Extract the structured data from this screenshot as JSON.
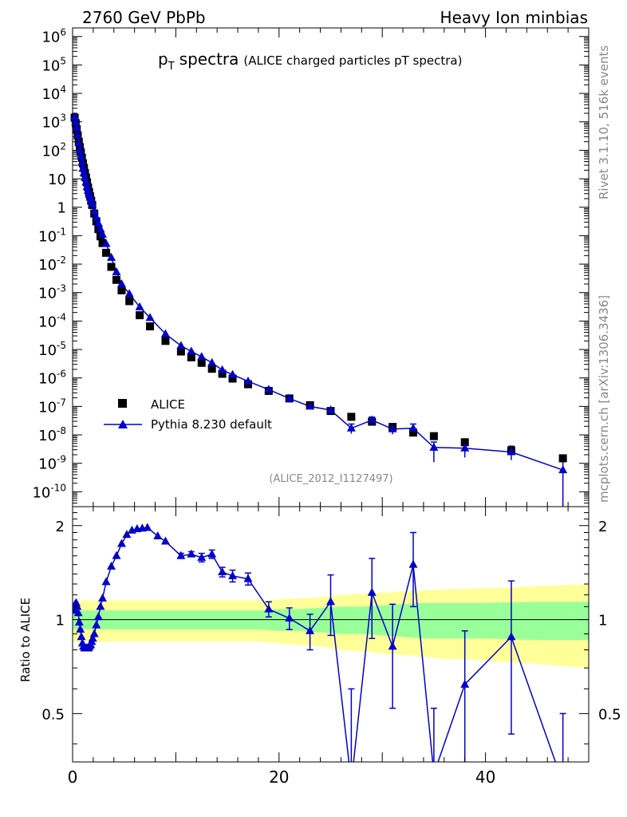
{
  "header": {
    "left": "2760 GeV PbPb",
    "right": "Heavy Ion minbias",
    "side_top": "Rivet 3.1.10,  516k events",
    "side_bottom": "mcplots.cern.ch [arXiv:1306.3436]"
  },
  "chart_data": [
    {
      "type": "scatter",
      "title": "p_T spectra",
      "title_main": "p",
      "title_sub": "T",
      "title_word": "spectra",
      "subtitle": "(ALICE charged particles pT spectra)",
      "analysis_tag": "(ALICE_2012_I1127497)",
      "y_scale": "log",
      "xlim": [
        0,
        50
      ],
      "ylim": [
        3e-11,
        2000000.0
      ],
      "y_tick_labels": [
        "10^-10",
        "10^-9",
        "10^-8",
        "10^-7",
        "10^-6",
        "10^-5",
        "10^-4",
        "10^-3",
        "10^-2",
        "10^-1",
        "1",
        "10",
        "10^2",
        "10^3",
        "10^4",
        "10^5",
        "10^6"
      ],
      "legend_position": "bottom-left",
      "legend": [
        "ALICE",
        "Pythia 8.230 default"
      ],
      "series": [
        {
          "name": "ALICE",
          "marker": "square",
          "color": "#000000",
          "x": [
            0.2,
            0.3,
            0.4,
            0.5,
            0.6,
            0.7,
            0.8,
            0.9,
            1.0,
            1.1,
            1.2,
            1.3,
            1.4,
            1.5,
            1.6,
            1.7,
            1.8,
            1.9,
            2.1,
            2.3,
            2.5,
            2.7,
            2.9,
            3.25,
            3.75,
            4.25,
            4.75,
            5.5,
            6.5,
            7.5,
            9.0,
            10.5,
            11.5,
            12.5,
            13.5,
            14.5,
            15.5,
            17.0,
            19.0,
            21.0,
            23.0,
            25.0,
            27.0,
            29.0,
            31.0,
            33.0,
            35.0,
            38.0,
            42.5,
            47.5
          ],
          "y": [
            1400.0,
            900.0,
            550.0,
            330.0,
            200.0,
            130.0,
            85,
            55,
            35,
            24,
            16,
            11,
            7.5,
            5.0,
            3.4,
            2.4,
            1.7,
            1.2,
            0.6,
            0.32,
            0.17,
            0.095,
            0.055,
            0.025,
            0.008,
            0.0028,
            0.0012,
            0.0005,
            0.00016,
            6.5e-05,
            2e-05,
            8.5e-06,
            5.3e-06,
            3.4e-06,
            2.1e-06,
            1.4e-06,
            9.5e-07,
            6e-07,
            3.5e-07,
            1.9e-07,
            1.1e-07,
            6.9e-08,
            4.3e-08,
            2.9e-08,
            1.9e-08,
            1.2e-08,
            9e-09,
            5.5e-09,
            2.8e-09,
            1.5e-09
          ]
        },
        {
          "name": "Pythia 8.230 default",
          "marker": "triangle",
          "color": "#0000cc",
          "x": [
            0.2,
            0.3,
            0.4,
            0.5,
            0.6,
            0.7,
            0.8,
            0.9,
            1.0,
            1.1,
            1.2,
            1.3,
            1.4,
            1.5,
            1.6,
            1.7,
            1.8,
            1.9,
            2.1,
            2.3,
            2.5,
            2.7,
            2.9,
            3.25,
            3.75,
            4.25,
            4.75,
            5.5,
            6.5,
            7.5,
            9.0,
            10.5,
            11.5,
            12.5,
            13.5,
            14.5,
            15.5,
            17.0,
            19.0,
            21.0,
            23.0,
            25.0,
            27.0,
            29.0,
            31.0,
            33.0,
            35.0,
            38.0,
            42.5,
            47.5
          ],
          "y": [
            1500.0,
            1000.0,
            620.0,
            340.0,
            180.0,
            100.0,
            62,
            37,
            23,
            16,
            11,
            7.5,
            5.2,
            3.8,
            2.8,
            2.2,
            1.7,
            1.3,
            0.72,
            0.44,
            0.27,
            0.17,
            0.11,
            0.052,
            0.017,
            0.0053,
            0.002,
            0.0009,
            0.00031,
            0.00013,
            3.5e-05,
            1.35e-05,
            8.6e-06,
            5.5e-06,
            3.4e-06,
            1.9e-06,
            1.3e-06,
            7.6e-07,
            3.9e-07,
            1.9e-07,
            1e-07,
            7.4e-08,
            1.7e-08,
            3.3e-08,
            1.6e-08,
            1.7e-08,
            3.6e-09,
            3.4e-09,
            2.5e-09,
            5.8e-10
          ],
          "y_err_high": [
            0,
            0,
            0,
            0,
            0,
            0,
            0,
            0,
            0,
            0,
            0,
            0,
            0,
            0,
            0,
            0,
            0,
            0,
            0,
            0,
            0,
            0,
            0,
            0,
            0,
            0,
            0,
            0,
            0,
            0,
            0,
            0,
            0,
            0,
            0,
            0,
            0,
            0,
            0,
            0,
            0,
            0,
            7e-09,
            9e-09,
            6e-09,
            7e-09,
            2e-09,
            1.5e-09,
            1.5e-09,
            1.2e-09
          ],
          "y_err_low": [
            0,
            0,
            0,
            0,
            0,
            0,
            0,
            0,
            0,
            0,
            0,
            0,
            0,
            0,
            0,
            0,
            0,
            0,
            0,
            0,
            0,
            0,
            0,
            0,
            0,
            0,
            0,
            0,
            0,
            0,
            0,
            0,
            0,
            0,
            0,
            0,
            0,
            0,
            0,
            0,
            0,
            0,
            6e-09,
            8e-09,
            5.5e-09,
            6e-09,
            2.5e-09,
            1.8e-09,
            1.2e-09,
            6e-10
          ]
        }
      ]
    },
    {
      "type": "line",
      "ylabel": "Ratio to ALICE",
      "xlim": [
        0,
        50
      ],
      "ylim": [
        0.35,
        2.3
      ],
      "x_tick_labels": [
        "0",
        "20",
        "40"
      ],
      "y_tick_labels": [
        "0.5",
        "1",
        "2"
      ],
      "band_inner": {
        "color": "#99ff99",
        "x": [
          0,
          2,
          4,
          6,
          8,
          10,
          12,
          14,
          16,
          18,
          20,
          22,
          24,
          26,
          28,
          30,
          32,
          34,
          36,
          40,
          45,
          50
        ],
        "half_width": [
          0.07,
          0.07,
          0.07,
          0.07,
          0.07,
          0.07,
          0.07,
          0.07,
          0.07,
          0.07,
          0.08,
          0.08,
          0.09,
          0.1,
          0.1,
          0.11,
          0.12,
          0.13,
          0.13,
          0.13,
          0.14,
          0.14
        ]
      },
      "band_outer": {
        "color": "#ffff99",
        "x": [
          0,
          2,
          4,
          6,
          8,
          10,
          12,
          14,
          16,
          18,
          20,
          22,
          24,
          26,
          28,
          30,
          32,
          34,
          36,
          40,
          45,
          50
        ],
        "half_width": [
          0.15,
          0.15,
          0.15,
          0.15,
          0.15,
          0.15,
          0.15,
          0.15,
          0.15,
          0.15,
          0.16,
          0.17,
          0.18,
          0.2,
          0.21,
          0.22,
          0.23,
          0.24,
          0.25,
          0.26,
          0.28,
          0.3
        ]
      },
      "reference_line": 1,
      "series": [
        {
          "name": "Pythia 8.230 default",
          "marker": "triangle",
          "color": "#0000cc",
          "x": [
            0.15,
            0.25,
            0.35,
            0.45,
            0.55,
            0.65,
            0.75,
            0.85,
            0.95,
            1.05,
            1.15,
            1.25,
            1.35,
            1.45,
            1.55,
            1.65,
            1.75,
            1.85,
            1.95,
            2.1,
            2.3,
            2.5,
            2.7,
            2.9,
            3.25,
            3.75,
            4.25,
            4.75,
            5.25,
            5.75,
            6.25,
            6.75,
            7.25,
            8.25,
            9.0,
            10.5,
            11.5,
            12.5,
            13.5,
            14.5,
            15.5,
            17.0,
            19.0,
            21.0,
            23.0,
            25.0,
            27.0,
            29.0,
            31.0,
            33.0,
            35.0,
            38.0,
            42.5,
            47.5
          ],
          "y": [
            1.07,
            1.12,
            1.13,
            1.1,
            1.05,
            0.98,
            0.93,
            0.88,
            0.84,
            0.82,
            0.81,
            0.81,
            0.81,
            0.81,
            0.81,
            0.82,
            0.83,
            0.85,
            0.87,
            0.9,
            0.96,
            1.02,
            1.1,
            1.17,
            1.32,
            1.48,
            1.6,
            1.75,
            1.87,
            1.93,
            1.95,
            1.96,
            1.97,
            1.85,
            1.78,
            1.6,
            1.62,
            1.58,
            1.62,
            1.42,
            1.38,
            1.35,
            1.08,
            1.01,
            0.92,
            1.14,
            0.3,
            1.22,
            0.82,
            1.5,
            0.32,
            0.62,
            0.88,
            0.3
          ],
          "err": [
            0,
            0,
            0,
            0,
            0,
            0,
            0,
            0,
            0,
            0,
            0,
            0,
            0,
            0,
            0,
            0,
            0,
            0,
            0,
            0,
            0,
            0,
            0,
            0,
            0,
            0,
            0,
            0,
            0,
            0,
            0,
            0,
            0,
            0,
            0,
            0.03,
            0.03,
            0.05,
            0.05,
            0.05,
            0.06,
            0.06,
            0.06,
            0.08,
            0.12,
            0.25,
            0.3,
            0.35,
            0.3,
            0.4,
            0.2,
            0.3,
            0.45,
            0.2
          ]
        }
      ]
    }
  ]
}
